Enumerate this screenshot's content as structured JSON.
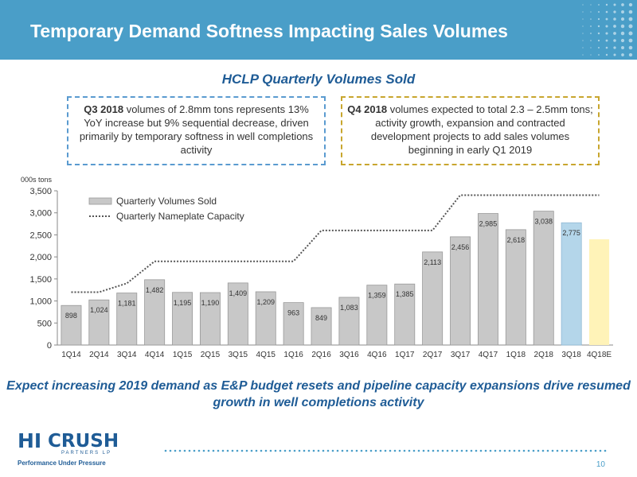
{
  "header": {
    "title": "Temporary Demand Softness Impacting Sales Volumes"
  },
  "subtitle": "HCLP Quarterly Volumes Sold",
  "callouts": {
    "q3": {
      "bold": "Q3 2018",
      "text": " volumes of 2.8mm tons represents 13% YoY increase but 9% sequential decrease, driven primarily by temporary softness in well completions activity"
    },
    "q4": {
      "bold": "Q4 2018",
      "text": " volumes expected to total 2.3 – 2.5mm tons; activity growth, expansion and contracted development projects to add sales volumes beginning in early Q1 2019"
    }
  },
  "bottom_text": "Expect increasing 2019 demand as E&P budget resets and pipeline capacity expansions drive resumed growth in well completions activity",
  "logo": {
    "hi": "HI",
    "crush": "CRUSH",
    "partners": "PARTNERS LP",
    "tagline": "Performance Under Pressure"
  },
  "page_number": "10",
  "colors": {
    "header": "#4a9ec8",
    "bar": "#c8c8c8",
    "bar_q3": "#b4d6ea",
    "bar_estimate": "#fff3b8",
    "capacity_line": "#555555",
    "accent_text": "#1f5c96"
  },
  "chart_data": {
    "type": "bar",
    "unit_label": "000s tons",
    "categories": [
      "1Q14",
      "2Q14",
      "3Q14",
      "4Q14",
      "1Q15",
      "2Q15",
      "3Q15",
      "4Q15",
      "1Q16",
      "2Q16",
      "3Q16",
      "4Q16",
      "1Q17",
      "2Q17",
      "3Q17",
      "4Q17",
      "1Q18",
      "2Q18",
      "3Q18",
      "4Q18E"
    ],
    "series": [
      {
        "name": "Quarterly Volumes Sold",
        "values": [
          898,
          1024,
          1181,
          1482,
          1195,
          1190,
          1409,
          1209,
          963,
          849,
          1083,
          1359,
          1385,
          2113,
          2456,
          2985,
          2618,
          3038,
          2775,
          2400
        ],
        "labels": [
          "898",
          "1,024",
          "1,181",
          "1,482",
          "1,195",
          "1,190",
          "1,409",
          "1,209",
          "963",
          "849",
          "1,083",
          "1,359",
          "1,385",
          "2,113",
          "2,456",
          "2,985",
          "2,618",
          "3,038",
          "2,775",
          ""
        ]
      },
      {
        "name": "Quarterly Nameplate Capacity",
        "style": "dotted-line",
        "values": [
          1200,
          1200,
          1400,
          1900,
          1900,
          1900,
          1900,
          1900,
          1900,
          2600,
          2600,
          2600,
          2600,
          2600,
          3400,
          3400,
          3400,
          3400,
          3400,
          3400
        ]
      }
    ],
    "ylim": [
      0,
      3500
    ],
    "yticks": [
      0,
      500,
      1000,
      1500,
      2000,
      2500,
      3000,
      3500
    ],
    "ytick_labels": [
      "0",
      "500",
      "1,000",
      "1,500",
      "2,000",
      "2,500",
      "3,000",
      "3,500"
    ],
    "legend_position": "top-left",
    "grid": false
  }
}
